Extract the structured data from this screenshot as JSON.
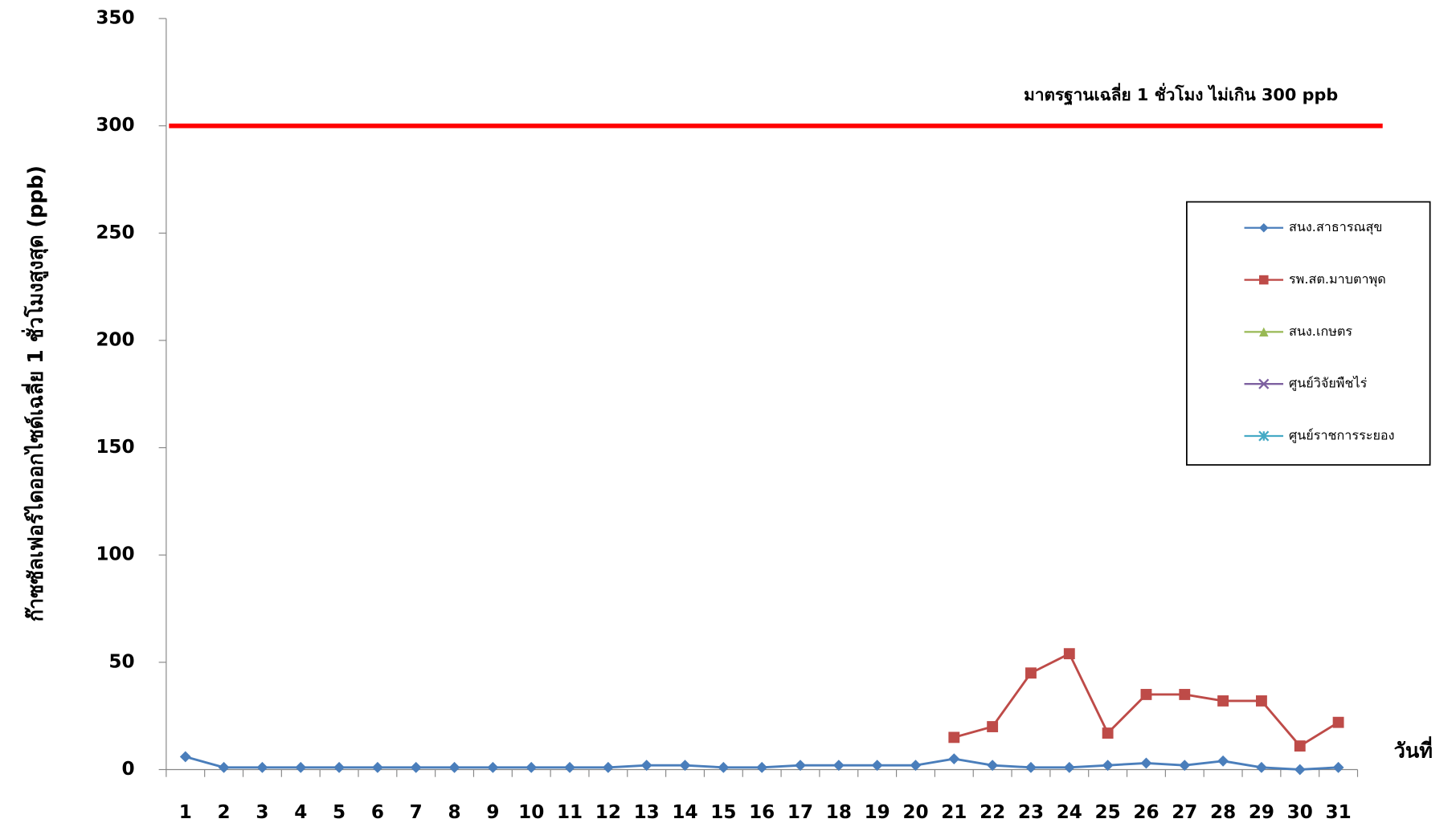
{
  "chart_data": {
    "type": "line",
    "y_label": "ก๊าซซัลเฟอร์ไดออกไซด์เฉลี่ย 1 ชั่วโมงสูงสุด (ppb)",
    "x_label": "วันที่",
    "categories": [
      "1",
      "2",
      "3",
      "4",
      "5",
      "6",
      "7",
      "8",
      "9",
      "10",
      "11",
      "12",
      "13",
      "14",
      "15",
      "16",
      "17",
      "18",
      "19",
      "20",
      "21",
      "22",
      "23",
      "24",
      "25",
      "26",
      "27",
      "28",
      "29",
      "30",
      "31"
    ],
    "series": [
      {
        "name": "สนง.สาธารณสุข",
        "color": "#4a7ebb",
        "marker": "diamond",
        "values": [
          6,
          1,
          1,
          1,
          1,
          1,
          1,
          1,
          1,
          1,
          1,
          1,
          2,
          2,
          1,
          1,
          2,
          2,
          2,
          2,
          5,
          2,
          1,
          1,
          2,
          3,
          2,
          4,
          1,
          0,
          1
        ]
      },
      {
        "name": "รพ.สต.มาบตาพุด",
        "color": "#be4b48",
        "marker": "square",
        "values": [
          null,
          null,
          null,
          null,
          null,
          null,
          null,
          null,
          null,
          null,
          null,
          null,
          null,
          null,
          null,
          null,
          null,
          null,
          null,
          null,
          15,
          20,
          45,
          54,
          17,
          35,
          35,
          32,
          32,
          11,
          22
        ]
      },
      {
        "name": "สนง.เกษตร",
        "color": "#98b954",
        "marker": "triangle",
        "values": [
          null,
          null,
          null,
          null,
          null,
          null,
          null,
          null,
          null,
          null,
          null,
          null,
          null,
          null,
          null,
          null,
          null,
          null,
          null,
          null,
          null,
          null,
          null,
          null,
          null,
          null,
          null,
          null,
          null,
          null,
          null
        ]
      },
      {
        "name": "ศูนย์วิจัยพืชไร่",
        "color": "#7d60a0",
        "marker": "x",
        "values": [
          null,
          null,
          null,
          null,
          null,
          null,
          null,
          null,
          null,
          null,
          null,
          null,
          null,
          null,
          null,
          null,
          null,
          null,
          null,
          null,
          null,
          null,
          null,
          null,
          null,
          null,
          null,
          null,
          null,
          null,
          null
        ]
      },
      {
        "name": "ศูนย์ราชการระยอง",
        "color": "#46aac5",
        "marker": "asterisk",
        "values": [
          null,
          null,
          null,
          null,
          null,
          null,
          null,
          null,
          null,
          null,
          null,
          null,
          null,
          null,
          null,
          null,
          null,
          null,
          null,
          null,
          null,
          null,
          null,
          null,
          null,
          null,
          null,
          null,
          null,
          null,
          null
        ]
      }
    ],
    "reference_line": {
      "value": 300,
      "label": "มาตรฐานเฉลี่ย 1 ชั่วโมง ไม่เกิน 300 ppb",
      "color": "#ff0000"
    },
    "ylim": [
      0,
      350
    ],
    "yticks": [
      0,
      50,
      100,
      150,
      200,
      250,
      300,
      350
    ],
    "grid": false,
    "legend_position": "right"
  }
}
